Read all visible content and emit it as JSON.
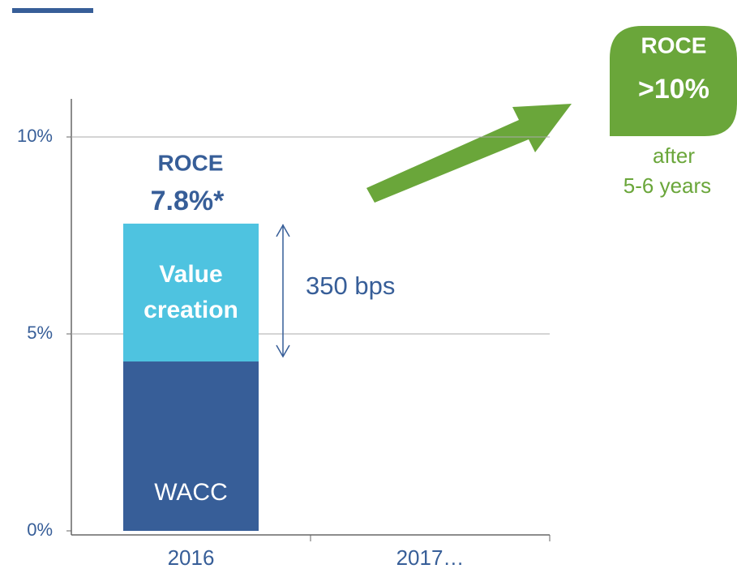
{
  "chart_data": {
    "type": "stacked_bar",
    "categories": [
      "2016",
      "2017…"
    ],
    "series": [
      {
        "name": "WACC",
        "color": "#375e98",
        "values": [
          4.3,
          null
        ]
      },
      {
        "name": "Value creation",
        "color": "#4ec3e0",
        "values": [
          3.5,
          null
        ],
        "value_labels": [
          "350 bps",
          null
        ]
      }
    ],
    "ylim": [
      0,
      10
    ],
    "yticks": [
      {
        "value": 0,
        "label": "0%"
      },
      {
        "value": 5,
        "label": "5%"
      },
      {
        "value": 10,
        "label": "10%"
      }
    ],
    "grid": true,
    "annotations": {
      "roce_title": "ROCE",
      "roce_value": "7.8%*"
    },
    "badge": {
      "title": "ROCE",
      "value": ">10%",
      "note_line1": "after",
      "note_line2": "5-6 years",
      "color": "#6aa63a"
    }
  }
}
